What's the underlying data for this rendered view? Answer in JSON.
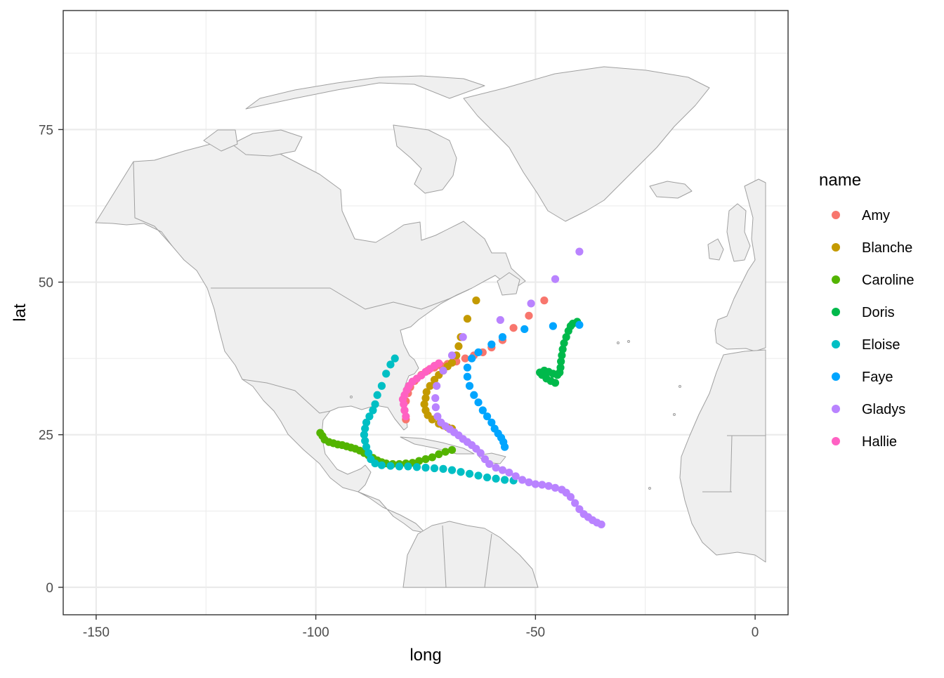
{
  "chart_data": {
    "type": "scatter",
    "xlabel": "long",
    "ylabel": "lat",
    "xlim": [
      -157.5,
      7.5
    ],
    "ylim": [
      -4.5,
      94.5
    ],
    "x_ticks": [
      -150,
      -100,
      -50,
      0
    ],
    "y_ticks": [
      0,
      25,
      50,
      75
    ],
    "x_tick_labels": [
      "-150",
      "-100",
      "-50",
      "0"
    ],
    "y_tick_labels": [
      "0",
      "25",
      "50",
      "75"
    ],
    "grid": true,
    "legend_title": "name",
    "legend_position": "right",
    "background_map": "North Atlantic basin land outlines (light grey fill)",
    "series": [
      {
        "name": "Amy",
        "color": "#F8766D",
        "points": [
          [
            -79.5,
            27.5
          ],
          [
            -79.8,
            29.0
          ],
          [
            -79.5,
            30.5
          ],
          [
            -79.0,
            31.8
          ],
          [
            -78.5,
            32.8
          ],
          [
            -77.5,
            33.8
          ],
          [
            -76.0,
            34.8
          ],
          [
            -74.5,
            35.5
          ],
          [
            -73.0,
            36.0
          ],
          [
            -71.5,
            36.3
          ],
          [
            -70.0,
            36.6
          ],
          [
            -68.0,
            37.0
          ],
          [
            -66.0,
            37.5
          ],
          [
            -64.0,
            38.0
          ],
          [
            -62.0,
            38.5
          ],
          [
            -60.0,
            39.3
          ],
          [
            -57.5,
            40.5
          ],
          [
            -55.0,
            42.5
          ],
          [
            -51.5,
            44.5
          ],
          [
            -48.0,
            47.0
          ]
        ]
      },
      {
        "name": "Blanche",
        "color": "#C49A00",
        "points": [
          [
            -69.0,
            26.0
          ],
          [
            -70.0,
            26.2
          ],
          [
            -71.0,
            26.5
          ],
          [
            -72.0,
            26.8
          ],
          [
            -73.5,
            27.5
          ],
          [
            -74.5,
            28.2
          ],
          [
            -75.0,
            29.0
          ],
          [
            -75.3,
            30.0
          ],
          [
            -75.0,
            31.0
          ],
          [
            -74.8,
            32.0
          ],
          [
            -74.0,
            33.0
          ],
          [
            -73.0,
            34.0
          ],
          [
            -72.0,
            34.8
          ],
          [
            -71.0,
            35.5
          ],
          [
            -70.0,
            36.2
          ],
          [
            -69.0,
            36.8
          ],
          [
            -68.0,
            38.0
          ],
          [
            -67.5,
            39.5
          ],
          [
            -67.0,
            41.0
          ],
          [
            -65.5,
            44.0
          ],
          [
            -63.5,
            47.0
          ]
        ]
      },
      {
        "name": "Caroline",
        "color": "#53B400",
        "points": [
          [
            -69.0,
            22.5
          ],
          [
            -70.5,
            22.2
          ],
          [
            -72.0,
            21.8
          ],
          [
            -73.5,
            21.3
          ],
          [
            -75.0,
            21.0
          ],
          [
            -76.5,
            20.7
          ],
          [
            -78.0,
            20.4
          ],
          [
            -79.5,
            20.3
          ],
          [
            -81.0,
            20.2
          ],
          [
            -82.5,
            20.2
          ],
          [
            -84.0,
            20.3
          ],
          [
            -85.0,
            20.5
          ],
          [
            -86.0,
            20.8
          ],
          [
            -87.0,
            21.2
          ],
          [
            -88.0,
            21.6
          ],
          [
            -89.0,
            22.0
          ],
          [
            -90.0,
            22.4
          ],
          [
            -91.0,
            22.7
          ],
          [
            -92.0,
            22.9
          ],
          [
            -93.0,
            23.1
          ],
          [
            -94.0,
            23.3
          ],
          [
            -95.0,
            23.4
          ],
          [
            -96.0,
            23.6
          ],
          [
            -97.0,
            23.8
          ],
          [
            -98.0,
            24.2
          ],
          [
            -98.5,
            24.8
          ],
          [
            -99.0,
            25.3
          ]
        ]
      },
      {
        "name": "Doris",
        "color": "#00B94B",
        "points": [
          [
            -45.5,
            33.5
          ],
          [
            -46.5,
            33.8
          ],
          [
            -47.5,
            34.2
          ],
          [
            -48.5,
            34.8
          ],
          [
            -49.0,
            35.2
          ],
          [
            -48.0,
            35.5
          ],
          [
            -47.0,
            35.3
          ],
          [
            -46.0,
            35.0
          ],
          [
            -45.0,
            34.8
          ],
          [
            -44.5,
            35.2
          ],
          [
            -44.3,
            36.0
          ],
          [
            -44.2,
            37.0
          ],
          [
            -44.0,
            38.0
          ],
          [
            -43.8,
            39.0
          ],
          [
            -43.5,
            40.0
          ],
          [
            -43.0,
            41.0
          ],
          [
            -42.5,
            42.0
          ],
          [
            -42.0,
            42.8
          ],
          [
            -41.5,
            43.2
          ],
          [
            -40.5,
            43.5
          ]
        ]
      },
      {
        "name": "Eloise",
        "color": "#00BFC4",
        "points": [
          [
            -55.0,
            17.5
          ],
          [
            -57.0,
            17.6
          ],
          [
            -59.0,
            17.8
          ],
          [
            -61.0,
            18.0
          ],
          [
            -63.0,
            18.3
          ],
          [
            -65.0,
            18.6
          ],
          [
            -67.0,
            18.9
          ],
          [
            -69.0,
            19.2
          ],
          [
            -71.0,
            19.4
          ],
          [
            -73.0,
            19.5
          ],
          [
            -75.0,
            19.6
          ],
          [
            -77.0,
            19.7
          ],
          [
            -79.0,
            19.8
          ],
          [
            -81.0,
            19.8
          ],
          [
            -83.0,
            19.9
          ],
          [
            -85.0,
            20.0
          ],
          [
            -86.5,
            20.3
          ],
          [
            -87.5,
            21.0
          ],
          [
            -88.0,
            22.0
          ],
          [
            -88.5,
            23.0
          ],
          [
            -88.8,
            24.0
          ],
          [
            -89.0,
            25.0
          ],
          [
            -88.8,
            26.0
          ],
          [
            -88.5,
            27.0
          ],
          [
            -87.8,
            28.0
          ],
          [
            -87.0,
            29.0
          ],
          [
            -86.5,
            30.0
          ],
          [
            -86.0,
            31.5
          ],
          [
            -85.0,
            33.0
          ],
          [
            -84.0,
            35.0
          ],
          [
            -83.0,
            36.5
          ],
          [
            -82.0,
            37.5
          ]
        ]
      },
      {
        "name": "Faye",
        "color": "#00A5FF",
        "points": [
          [
            -57.0,
            23.0
          ],
          [
            -57.3,
            23.8
          ],
          [
            -57.8,
            24.5
          ],
          [
            -58.5,
            25.2
          ],
          [
            -59.3,
            26.0
          ],
          [
            -60.0,
            27.0
          ],
          [
            -61.0,
            28.0
          ],
          [
            -62.0,
            29.0
          ],
          [
            -63.0,
            30.3
          ],
          [
            -64.0,
            31.5
          ],
          [
            -65.0,
            33.0
          ],
          [
            -65.5,
            34.5
          ],
          [
            -65.5,
            36.0
          ],
          [
            -64.5,
            37.5
          ],
          [
            -63.0,
            38.5
          ],
          [
            -60.0,
            39.8
          ],
          [
            -57.5,
            41.0
          ],
          [
            -52.5,
            42.3
          ],
          [
            -46.0,
            42.8
          ],
          [
            -40.0,
            43.0
          ]
        ]
      },
      {
        "name": "Gladys",
        "color": "#B983FF",
        "points": [
          [
            -35.0,
            10.3
          ],
          [
            -36.0,
            10.6
          ],
          [
            -37.0,
            11.0
          ],
          [
            -38.0,
            11.5
          ],
          [
            -39.0,
            12.0
          ],
          [
            -40.0,
            12.8
          ],
          [
            -41.0,
            13.8
          ],
          [
            -42.0,
            14.8
          ],
          [
            -43.0,
            15.5
          ],
          [
            -44.0,
            16.0
          ],
          [
            -45.5,
            16.3
          ],
          [
            -47.0,
            16.6
          ],
          [
            -48.5,
            16.8
          ],
          [
            -50.0,
            16.9
          ],
          [
            -51.5,
            17.2
          ],
          [
            -53.0,
            17.6
          ],
          [
            -54.5,
            18.2
          ],
          [
            -56.0,
            18.8
          ],
          [
            -57.5,
            19.2
          ],
          [
            -59.0,
            19.6
          ],
          [
            -60.5,
            20.2
          ],
          [
            -61.5,
            21.0
          ],
          [
            -62.5,
            22.0
          ],
          [
            -63.5,
            22.7
          ],
          [
            -64.5,
            23.3
          ],
          [
            -65.5,
            23.8
          ],
          [
            -66.5,
            24.3
          ],
          [
            -67.5,
            24.9
          ],
          [
            -68.5,
            25.4
          ],
          [
            -69.5,
            25.9
          ],
          [
            -70.5,
            26.4
          ],
          [
            -71.5,
            27.0
          ],
          [
            -72.3,
            28.0
          ],
          [
            -72.7,
            29.5
          ],
          [
            -72.8,
            31.0
          ],
          [
            -72.5,
            33.0
          ],
          [
            -71.0,
            35.5
          ],
          [
            -69.0,
            38.0
          ],
          [
            -66.5,
            41.0
          ],
          [
            -58.0,
            43.8
          ],
          [
            -51.0,
            46.5
          ],
          [
            -45.5,
            50.5
          ],
          [
            -40.0,
            55.0
          ]
        ]
      },
      {
        "name": "Hallie",
        "color": "#FF61C3",
        "points": [
          [
            -79.5,
            28.0
          ],
          [
            -79.8,
            29.0
          ],
          [
            -80.0,
            30.0
          ],
          [
            -80.2,
            30.8
          ],
          [
            -79.8,
            31.5
          ],
          [
            -79.3,
            32.3
          ],
          [
            -78.8,
            33.0
          ],
          [
            -78.0,
            33.7
          ],
          [
            -77.0,
            34.2
          ],
          [
            -76.0,
            34.7
          ],
          [
            -75.0,
            35.3
          ],
          [
            -74.0,
            35.8
          ],
          [
            -73.0,
            36.3
          ],
          [
            -72.0,
            36.7
          ]
        ]
      }
    ]
  }
}
